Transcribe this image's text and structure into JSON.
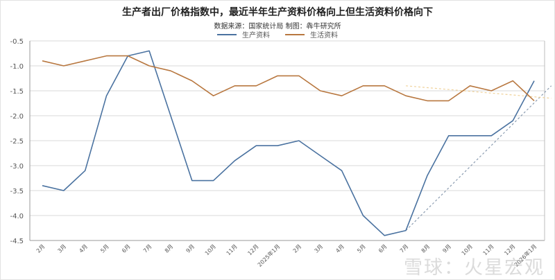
{
  "chart_data": {
    "type": "line",
    "title": "生产者出厂价格指数中，最近半年生产资料价格向上但生活资料价格向下",
    "subtitle": "数据来源：国家统计局  制图：犇牛研究所",
    "xlabel": "",
    "ylabel": "",
    "ylim": [
      -4.5,
      -0.5
    ],
    "yticks": [
      "-0.5",
      "-1.0",
      "-1.5",
      "-2.0",
      "-2.5",
      "-3.0",
      "-3.5",
      "-4.0",
      "-4.5"
    ],
    "grid": true,
    "legend_position": "top",
    "categories": [
      "2月",
      "3月",
      "4月",
      "5月",
      "6月",
      "7月",
      "8月",
      "9月",
      "10月",
      "11月",
      "12月",
      "2025年1月",
      "2月",
      "3月",
      "4月",
      "5月",
      "6月",
      "7月",
      "8月",
      "9月",
      "10月",
      "11月",
      "12月",
      "2026年1月"
    ],
    "series": [
      {
        "name": "生产资料",
        "color": "#4a72a0",
        "values": [
          -3.4,
          -3.5,
          -3.1,
          -1.6,
          -0.8,
          -0.7,
          -2.0,
          -3.3,
          -3.3,
          -2.9,
          -2.6,
          -2.6,
          -2.5,
          -2.8,
          -3.1,
          -4.0,
          -4.4,
          -4.3,
          -3.2,
          -2.4,
          -2.4,
          -2.4,
          -2.1,
          -1.3
        ]
      },
      {
        "name": "生活资料",
        "color": "#b8773f",
        "values": [
          -0.9,
          -1.0,
          -0.9,
          -0.8,
          -0.8,
          -1.0,
          -1.1,
          -1.3,
          -1.6,
          -1.4,
          -1.4,
          -1.2,
          -1.2,
          -1.5,
          -1.6,
          -1.4,
          -1.4,
          -1.6,
          -1.7,
          -1.7,
          -1.4,
          -1.5,
          -1.3,
          -1.7
        ]
      }
    ],
    "trendlines": [
      {
        "series": "生产资料",
        "style": "dashed",
        "color": "#8a9bb0",
        "from_index": 17,
        "from_value": -4.3,
        "to_index": 23.8,
        "to_value": -1.4
      },
      {
        "series": "生活资料",
        "style": "dashed",
        "color": "#f0d29a",
        "from_index": 17,
        "from_value": -1.4,
        "to_index": 23.8,
        "to_value": -1.65
      }
    ]
  },
  "watermark": "雪球：火星宏观"
}
